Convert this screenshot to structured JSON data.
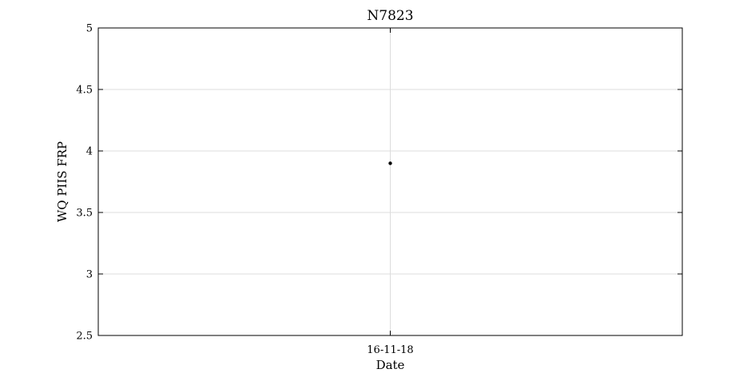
{
  "chart_data": {
    "type": "scatter",
    "title": "N7823",
    "xlabel": "Date",
    "ylabel": "WQ PIIS FRP",
    "x_type": "date",
    "x_tick_labels": [
      "16-11-18"
    ],
    "y_ticks": [
      2.5,
      3,
      3.5,
      4,
      4.5,
      5
    ],
    "y_tick_labels": [
      "2.5",
      "3",
      "3.5",
      "4",
      "4.5",
      "5"
    ],
    "ylim": [
      2.5,
      5
    ],
    "grid": true,
    "legend": "none",
    "marker_color": "#000000",
    "series": [
      {
        "x": [
          "16-11-18"
        ],
        "y": [
          3.9
        ]
      }
    ]
  }
}
